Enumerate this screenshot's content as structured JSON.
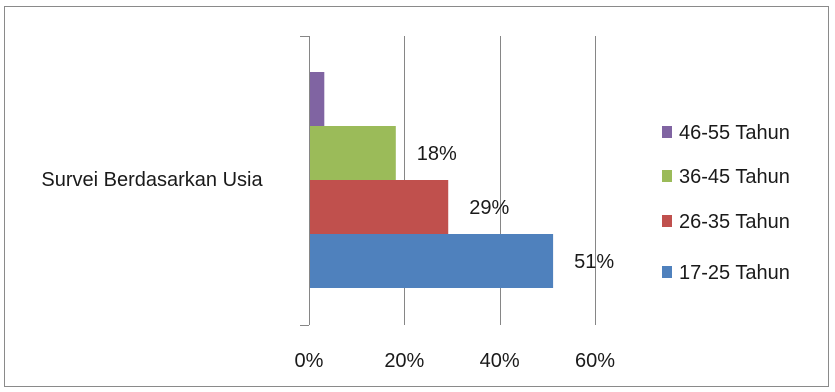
{
  "chart_data": {
    "type": "bar",
    "orientation": "horizontal",
    "title": "",
    "xlabel": "",
    "ylabel": "",
    "categories": [
      "Survei Berdasarkan Usia"
    ],
    "xlim": [
      0,
      0.6
    ],
    "x_ticks": [
      0,
      0.2,
      0.4,
      0.6
    ],
    "x_tick_labels": [
      "0%",
      "20%",
      "40%",
      "60%"
    ],
    "grid": "vertical major gridlines",
    "legend_position": "right",
    "series": [
      {
        "name": "17-25 Tahun",
        "values": [
          0.51
        ],
        "label": "51%",
        "color": "#4f81bd"
      },
      {
        "name": "26-35 Tahun",
        "values": [
          0.29
        ],
        "label": "29%",
        "color": "#c0504d"
      },
      {
        "name": "36-45 Tahun",
        "values": [
          0.18
        ],
        "label": "18%",
        "color": "#9bbb59"
      },
      {
        "name": "46-55 Tahun",
        "values": [
          0.03
        ],
        "label": "",
        "color": "#8064a2"
      }
    ]
  }
}
